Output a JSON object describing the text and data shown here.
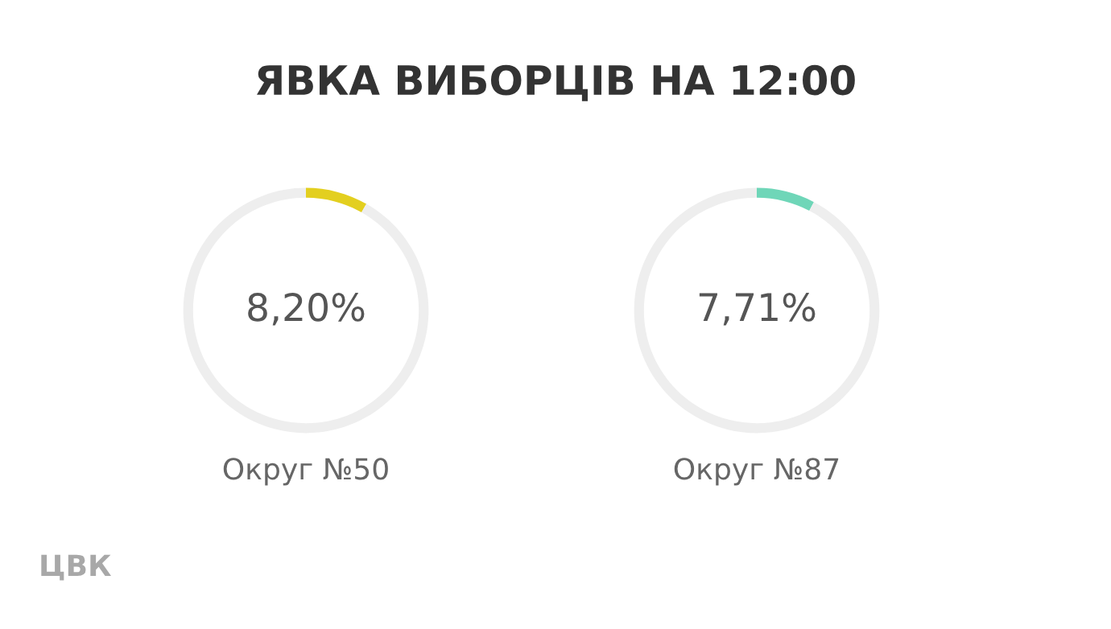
{
  "chart_data": [
    {
      "type": "donut",
      "title": "ЯВКА ВИБОРЦІВ НА 12:00",
      "xlabel": "Округ №50",
      "categories": [
        null,
        null
      ],
      "values": [
        8.2,
        91.8
      ],
      "colors": [
        "#e3cf1f",
        "#eeeeee"
      ],
      "value_labels": [
        "8,20%",
        null
      ],
      "annotations": [
        "ЦВК"
      ]
    },
    {
      "type": "donut",
      "xlabel": "Округ №87",
      "categories": [
        null,
        null
      ],
      "values": [
        7.71,
        92.29
      ],
      "colors": [
        "#6fd6b8",
        "#eeeeee"
      ],
      "value_labels": [
        "7,71%",
        null
      ]
    }
  ]
}
